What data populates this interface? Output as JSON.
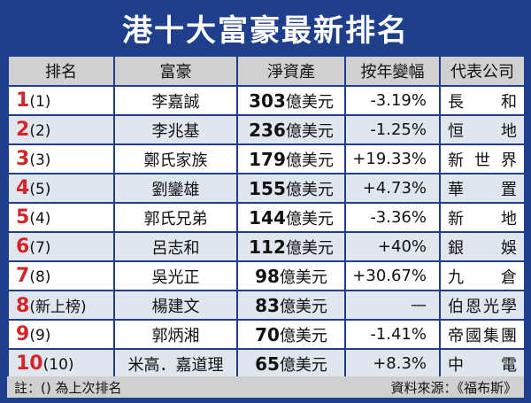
{
  "title": "港十大富豪最新排名",
  "headers": [
    "排名",
    "富豪",
    "淨資產",
    "按年變幅",
    "代表公司"
  ],
  "rows": [
    {
      "rank": "1",
      "prev": "(1)",
      "name": "李嘉誠",
      "worth": "303",
      "unit": "億美元",
      "change": "-3.19%",
      "company": [
        "長",
        "和"
      ]
    },
    {
      "rank": "2",
      "prev": "(2)",
      "name": "李兆基",
      "worth": "236",
      "unit": "億美元",
      "change": "-1.25%",
      "company": [
        "恒",
        "地"
      ]
    },
    {
      "rank": "3",
      "prev": "(3)",
      "name": "鄭氏家族",
      "worth": "179",
      "unit": "億美元",
      "change": "+19.33%",
      "company": [
        "新",
        "世",
        "界"
      ]
    },
    {
      "rank": "4",
      "prev": "(5)",
      "name": "劉鑾雄",
      "worth": "155",
      "unit": "億美元",
      "change": "+4.73%",
      "company": [
        "華",
        "置"
      ]
    },
    {
      "rank": "5",
      "prev": "(4)",
      "name": "郭氏兄弟",
      "worth": "144",
      "unit": "億美元",
      "change": "-3.36%",
      "company": [
        "新",
        "地"
      ]
    },
    {
      "rank": "6",
      "prev": "(7)",
      "name": "呂志和",
      "worth": "112",
      "unit": "億美元",
      "change": "+40%",
      "company": [
        "銀",
        "娛"
      ]
    },
    {
      "rank": "7",
      "prev": "(8)",
      "name": "吳光正",
      "worth": "98",
      "unit": "億美元",
      "change": "+30.67%",
      "company": [
        "九",
        "倉"
      ]
    },
    {
      "rank": "8",
      "prev": "(新上榜)",
      "name": "楊建文",
      "worth": "83",
      "unit": "億美元",
      "change": "—",
      "company": [
        "伯",
        "恩",
        "光",
        "學"
      ]
    },
    {
      "rank": "9",
      "prev": "(9)",
      "name": "郭炳湘",
      "worth": "70",
      "unit": "億美元",
      "change": "-1.41%",
      "company": [
        "帝",
        "國",
        "集",
        "團"
      ]
    },
    {
      "rank": "10",
      "prev": "(10)",
      "name": "米高．嘉道理",
      "worth": "65",
      "unit": "億美元",
      "change": "+8.3%",
      "company": [
        "中",
        "電"
      ]
    }
  ],
  "footer": {
    "note": "註：() 為上次排名",
    "source": "資料來源：《福布斯》"
  },
  "colors": {
    "frame": "#1f3f8c",
    "rank_number": "#d4262a",
    "header_bg": "#d0d0d0",
    "alt_row_bg": "#dfe6ee"
  }
}
